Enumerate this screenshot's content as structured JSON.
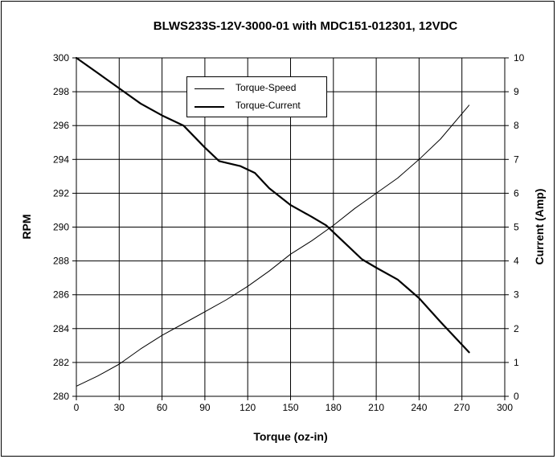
{
  "chart_data": {
    "type": "line",
    "title": "BLWS233S-12V-3000-01  with MDC151-012301,  12VDC",
    "xlabel": "Torque (oz-in)",
    "ylabel": "RPM",
    "y2label": "Current (Amp)",
    "xlim": [
      0,
      300
    ],
    "ylim": [
      280,
      300
    ],
    "y2lim": [
      0,
      10
    ],
    "xticks": [
      "0",
      "30",
      "60",
      "90",
      "120",
      "150",
      "180",
      "210",
      "240",
      "270",
      "300"
    ],
    "yticks": [
      "280",
      "282",
      "284",
      "286",
      "288",
      "290",
      "292",
      "294",
      "296",
      "298",
      "300"
    ],
    "y2ticks": [
      "0",
      "1",
      "2",
      "3",
      "4",
      "5",
      "6",
      "7",
      "8",
      "9",
      "10"
    ],
    "grid": true,
    "legend_position": "top-left-center",
    "series": [
      {
        "name": "Torque-Speed",
        "axis": "left",
        "style": "thick",
        "x": [
          0,
          15,
          30,
          45,
          60,
          75,
          90,
          100,
          115,
          125,
          135,
          150,
          165,
          175,
          190,
          200,
          210,
          225,
          240,
          255,
          275
        ],
        "values": [
          300,
          299.1,
          298.2,
          297.3,
          296.6,
          296.0,
          294.7,
          293.9,
          293.6,
          293.2,
          292.3,
          291.3,
          290.6,
          290.1,
          288.9,
          288.1,
          287.6,
          286.9,
          285.8,
          284.4,
          282.6
        ]
      },
      {
        "name": "Torque-Current",
        "axis": "right",
        "style": "thin",
        "x": [
          0,
          15,
          30,
          45,
          60,
          75,
          90,
          105,
          120,
          135,
          150,
          165,
          180,
          195,
          210,
          225,
          240,
          255,
          275
        ],
        "values": [
          0.3,
          0.6,
          0.95,
          1.4,
          1.8,
          2.15,
          2.5,
          2.85,
          3.25,
          3.7,
          4.2,
          4.6,
          5.05,
          5.55,
          6.0,
          6.45,
          7.0,
          7.6,
          8.6
        ]
      }
    ]
  }
}
